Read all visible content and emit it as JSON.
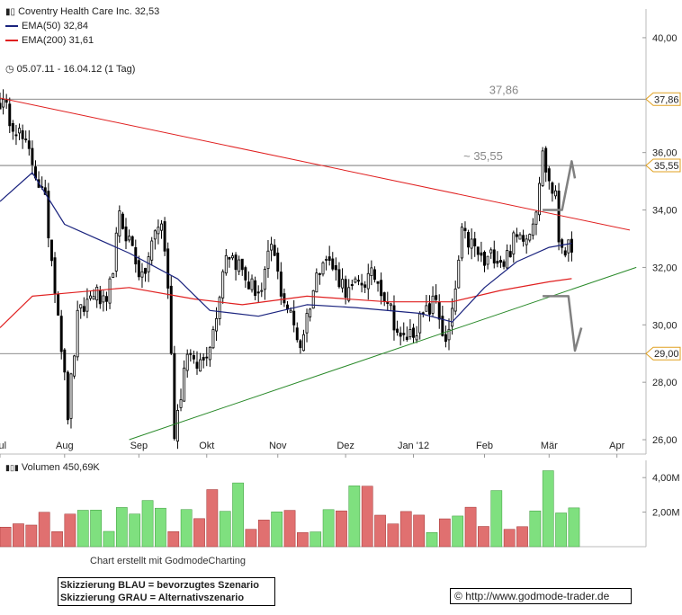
{
  "legend": {
    "title": "Coventry Health Care Inc. 32,53",
    "ema50": "EMA(50) 32,84",
    "ema200": "EMA(200) 31,61",
    "range": "05.07.11 - 16.04.12 (1 Tag)"
  },
  "colors": {
    "ema50": "#1a237e",
    "ema200": "#e02020",
    "resistance": "#e02020",
    "support": "#2a8a2a",
    "scenario": "#808080",
    "vol_up": "#7fe07f",
    "vol_down": "#e07070"
  },
  "volume": {
    "label": "Volumen 450,69K"
  },
  "footer": {
    "credit": "Chart erstellt mit GodmodeCharting",
    "note_blue": "Skizzierung BLAU = bevorzugtes Szenario",
    "note_grey": "Skizzierung GRAU = Alternativszenario",
    "url": "http://www.godmode-trader.de"
  },
  "chart_data": [
    {
      "type": "candlestick",
      "x_ticks": [
        "Jul",
        "Aug",
        "Sep",
        "Okt",
        "Nov",
        "Dez",
        "Jan '12",
        "Feb",
        "Mär",
        "Apr"
      ],
      "y_ticks": [
        "40,00",
        "36,00",
        "34,00",
        "32,00",
        "30,00",
        "28,00",
        "26,00"
      ],
      "ylim": [
        25.5,
        41
      ],
      "tagged_levels": [
        {
          "value": 37.86,
          "label": "37,86"
        },
        {
          "value": 35.55,
          "label": "35,55"
        },
        {
          "value": 29.0,
          "label": "29,00"
        }
      ],
      "annotations": [
        "37,86",
        "~ 35,55"
      ],
      "last_close": 32.53,
      "ema50_last": 32.84,
      "ema200_last": 31.61,
      "price_path": [
        [
          0,
          37.8
        ],
        [
          5,
          36.9
        ],
        [
          10,
          35.7
        ],
        [
          14,
          34.2
        ],
        [
          18,
          30.5
        ],
        [
          21,
          26.9
        ],
        [
          24,
          30.2
        ],
        [
          29,
          31.2
        ],
        [
          33,
          30.5
        ],
        [
          37,
          33.7
        ],
        [
          41,
          32.7
        ],
        [
          44,
          31.5
        ],
        [
          48,
          33.2
        ],
        [
          50,
          33.6
        ],
        [
          52,
          31.4
        ],
        [
          54,
          26.3
        ],
        [
          56,
          27.7
        ],
        [
          58,
          29.2
        ],
        [
          60,
          28.5
        ],
        [
          63,
          28.8
        ],
        [
          66,
          29.8
        ],
        [
          70,
          32.6
        ],
        [
          74,
          32.1
        ],
        [
          77,
          31.4
        ],
        [
          81,
          31.1
        ],
        [
          84,
          32.8
        ],
        [
          87,
          31.2
        ],
        [
          90,
          30.3
        ],
        [
          93,
          29.3
        ],
        [
          96,
          30.8
        ],
        [
          100,
          32.5
        ],
        [
          104,
          31.8
        ],
        [
          108,
          31.1
        ],
        [
          112,
          31.5
        ],
        [
          116,
          31.7
        ],
        [
          120,
          30.9
        ],
        [
          124,
          29.4
        ],
        [
          128,
          29.8
        ],
        [
          132,
          30.4
        ],
        [
          135,
          30.9
        ],
        [
          138,
          29.2
        ],
        [
          140,
          30.3
        ],
        [
          143,
          33.1
        ],
        [
          146,
          32.8
        ],
        [
          150,
          32.1
        ],
        [
          153,
          32.5
        ],
        [
          156,
          32.2
        ],
        [
          159,
          32.9
        ],
        [
          162,
          33.2
        ],
        [
          164,
          33.3
        ],
        [
          166,
          34.2
        ],
        [
          167,
          35.1
        ],
        [
          168,
          35.9
        ],
        [
          170,
          35.0
        ],
        [
          172,
          34.4
        ],
        [
          173,
          33.0
        ],
        [
          175,
          32.7
        ],
        [
          177,
          32.53
        ]
      ],
      "ema50": [
        [
          0,
          34.3
        ],
        [
          10,
          35.3
        ],
        [
          20,
          33.5
        ],
        [
          40,
          32.5
        ],
        [
          55,
          31.6
        ],
        [
          65,
          30.5
        ],
        [
          80,
          30.3
        ],
        [
          95,
          30.7
        ],
        [
          110,
          30.6
        ],
        [
          130,
          30.4
        ],
        [
          140,
          30.1
        ],
        [
          150,
          31.3
        ],
        [
          160,
          32.2
        ],
        [
          170,
          32.7
        ],
        [
          177,
          32.84
        ]
      ],
      "ema200": [
        [
          0,
          29.9
        ],
        [
          10,
          31.0
        ],
        [
          20,
          31.1
        ],
        [
          40,
          31.3
        ],
        [
          60,
          30.9
        ],
        [
          75,
          30.7
        ],
        [
          95,
          31.0
        ],
        [
          120,
          30.8
        ],
        [
          140,
          30.8
        ],
        [
          155,
          31.2
        ],
        [
          170,
          31.5
        ],
        [
          177,
          31.61
        ]
      ],
      "resistance_line": [
        [
          0,
          37.9
        ],
        [
          195,
          33.3
        ]
      ],
      "support_line": [
        [
          40,
          26.0
        ],
        [
          197,
          32.0
        ]
      ],
      "scenario_up": [
        [
          168,
          34.0
        ],
        [
          174,
          34.0
        ],
        [
          177,
          35.7
        ],
        [
          178,
          35.1
        ]
      ],
      "scenario_down": [
        [
          168,
          31.0
        ],
        [
          176,
          31.0
        ],
        [
          178,
          29.1
        ],
        [
          180,
          29.9
        ]
      ]
    },
    {
      "type": "bar",
      "title": "Volumen 450,69K",
      "y_ticks": [
        "4,00M",
        "2,00M"
      ],
      "ylim": [
        0,
        5.0
      ]
    }
  ]
}
